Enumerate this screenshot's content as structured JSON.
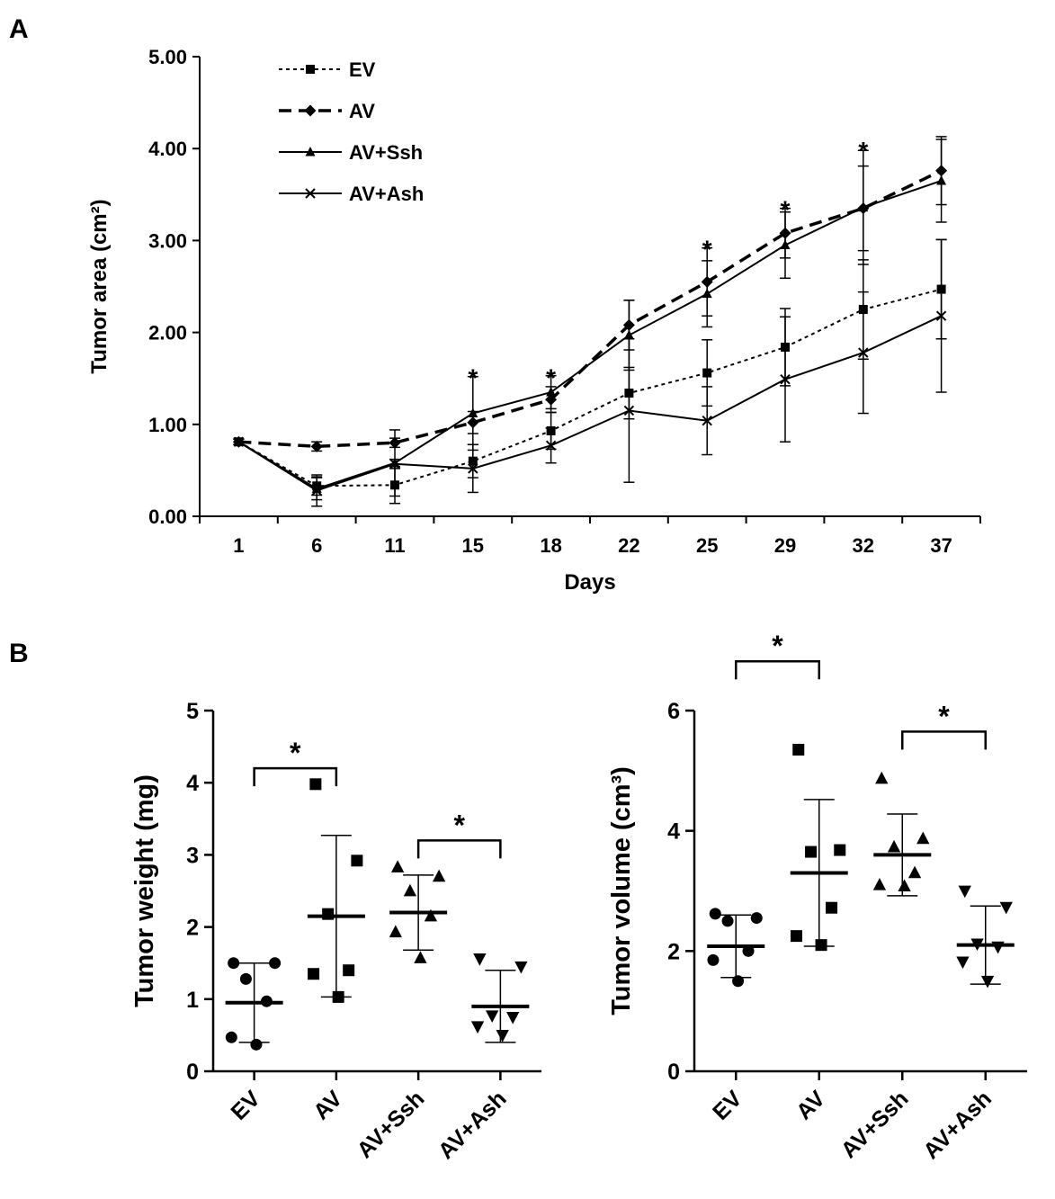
{
  "panels": {
    "a_label": "A",
    "b_label": "B"
  },
  "chart_data": [
    {
      "type": "line",
      "xlabel": "Days",
      "ylabel": "Tumor area (cm²)",
      "x": [
        1,
        6,
        11,
        15,
        18,
        22,
        25,
        29,
        32,
        37
      ],
      "x_tick_labels": [
        "1",
        "6",
        "11",
        "15",
        "18",
        "22",
        "25",
        "29",
        "32",
        "37"
      ],
      "ylim": [
        0,
        5
      ],
      "y_ticks": [
        "0.00",
        "1.00",
        "2.00",
        "3.00",
        "4.00",
        "5.00"
      ],
      "legend_position": "top-left",
      "series": [
        {
          "name": "EV",
          "line": "dotted",
          "marker": "square",
          "values": [
            0.81,
            0.33,
            0.34,
            0.6,
            0.93,
            1.34,
            1.56,
            1.84,
            2.25,
            2.47
          ],
          "error": [
            0.03,
            0.1,
            0.2,
            0.18,
            0.2,
            0.28,
            0.36,
            0.42,
            0.54,
            0.54
          ]
        },
        {
          "name": "AV",
          "line": "dashed",
          "marker": "diamond",
          "values": [
            0.81,
            0.76,
            0.8,
            1.02,
            1.27,
            2.08,
            2.55,
            3.08,
            3.35,
            3.76
          ],
          "error": [
            0.03,
            0.05,
            0.05,
            0.12,
            0.14,
            0.27,
            0.37,
            0.27,
            0.46,
            0.37
          ]
        },
        {
          "name": "AV+Ssh",
          "line": "solid",
          "marker": "triangle",
          "values": [
            0.81,
            0.3,
            0.58,
            1.12,
            1.35,
            1.97,
            2.42,
            2.95,
            3.36,
            3.65
          ],
          "error": [
            0.03,
            0.12,
            0.36,
            0.4,
            0.18,
            0.38,
            0.36,
            0.36,
            0.62,
            0.45
          ]
        },
        {
          "name": "AV+Ash",
          "line": "solid",
          "marker": "x",
          "values": [
            0.81,
            0.28,
            0.57,
            0.52,
            0.77,
            1.15,
            1.04,
            1.49,
            1.78,
            2.18
          ],
          "error": [
            0.03,
            0.17,
            0.05,
            0.26,
            0.19,
            0.78,
            0.37,
            0.68,
            0.66,
            0.83
          ]
        }
      ],
      "annotations": [
        {
          "text": "*",
          "x": 15,
          "y": 1.55
        },
        {
          "text": "*",
          "x": 18,
          "y": 1.55
        },
        {
          "text": "*",
          "x": 25,
          "y": 2.95
        },
        {
          "text": "*",
          "x": 29,
          "y": 3.38
        },
        {
          "text": "*",
          "x": 32,
          "y": 4.02
        }
      ]
    },
    {
      "type": "scatter",
      "ylabel": "Tumor weight (mg)",
      "categories": [
        "EV",
        "AV",
        "AV+Ssh",
        "AV+Ash"
      ],
      "ylim": [
        0,
        5
      ],
      "y_ticks": [
        "0",
        "1",
        "2",
        "3",
        "4",
        "5"
      ],
      "groups": [
        {
          "name": "EV",
          "marker": "circle",
          "points": [
            1.5,
            1.5,
            1.28,
            0.97,
            0.47,
            0.37
          ],
          "mean": 0.95,
          "sd": 0.55
        },
        {
          "name": "AV",
          "marker": "square",
          "points": [
            3.98,
            2.92,
            2.18,
            1.4,
            1.35,
            1.03
          ],
          "mean": 2.15,
          "sd": 1.12
        },
        {
          "name": "AV+Ssh",
          "marker": "triangle-up",
          "points": [
            2.83,
            2.7,
            2.5,
            2.15,
            1.93,
            1.57
          ],
          "mean": 2.2,
          "sd": 0.52
        },
        {
          "name": "AV+Ash",
          "marker": "triangle-down",
          "points": [
            1.56,
            1.45,
            0.77,
            0.75,
            0.62,
            0.5
          ],
          "mean": 0.9,
          "sd": 0.5
        }
      ],
      "significance": [
        {
          "text": "*",
          "from": "EV",
          "to": "AV",
          "y": 4.2
        },
        {
          "text": "*",
          "from": "AV+Ssh",
          "to": "AV+Ash",
          "y": 3.2
        }
      ]
    },
    {
      "type": "scatter",
      "ylabel": "Tumor volume (cm³)",
      "categories": [
        "EV",
        "AV",
        "AV+Ssh",
        "AV+Ash"
      ],
      "ylim": [
        0,
        6
      ],
      "y_ticks": [
        "0",
        "2",
        "4",
        "6"
      ],
      "groups": [
        {
          "name": "EV",
          "marker": "circle",
          "points": [
            2.62,
            2.55,
            2.5,
            2.0,
            1.85,
            1.5
          ],
          "mean": 2.08,
          "sd": 0.52
        },
        {
          "name": "AV",
          "marker": "square",
          "points": [
            5.35,
            3.68,
            3.65,
            2.72,
            2.25,
            2.1
          ],
          "mean": 3.3,
          "sd": 1.22
        },
        {
          "name": "AV+Ssh",
          "marker": "triangle-up",
          "points": [
            4.87,
            3.87,
            3.73,
            3.3,
            3.1,
            3.08
          ],
          "mean": 3.6,
          "sd": 0.68
        },
        {
          "name": "AV+Ash",
          "marker": "triangle-down",
          "points": [
            3.0,
            2.73,
            2.12,
            2.07,
            1.82,
            1.5
          ],
          "mean": 2.1,
          "sd": 0.65
        }
      ],
      "significance": [
        {
          "text": "*",
          "from": "EV",
          "to": "AV",
          "y": 6.82
        },
        {
          "text": "*",
          "from": "AV+Ssh",
          "to": "AV+Ash",
          "y": 5.65
        }
      ]
    }
  ]
}
